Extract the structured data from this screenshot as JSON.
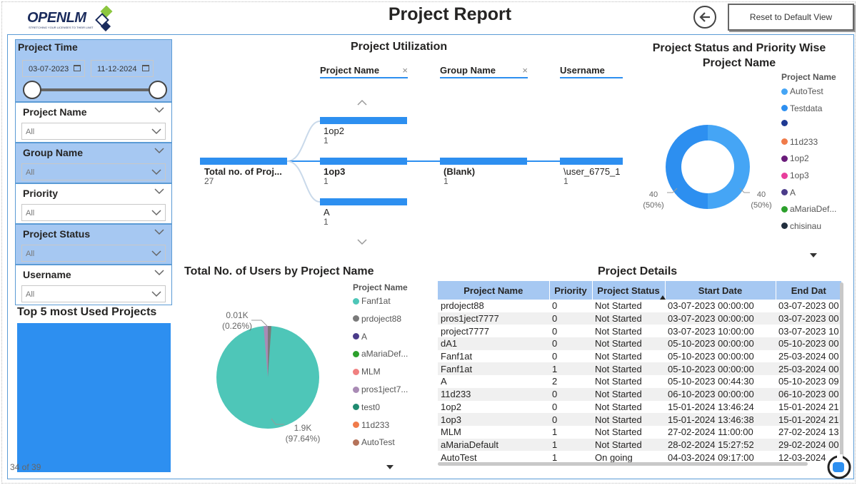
{
  "header": {
    "logo_text": "OPENLM",
    "logo_tagline": "STRETCHING YOUR LICENSES TO THEIR LIMIT",
    "title": "Project Report",
    "reset_label": "Reset to Default View"
  },
  "filters": {
    "project_time": {
      "title": "Project Time",
      "start": "03-07-2023",
      "end": "11-12-2024"
    },
    "project_name": {
      "title": "Project Name",
      "value": "All"
    },
    "group_name": {
      "title": "Group Name",
      "value": "All"
    },
    "priority": {
      "title": "Priority",
      "value": "All"
    },
    "project_status": {
      "title": "Project Status",
      "value": "All"
    },
    "username": {
      "title": "Username",
      "value": "All"
    }
  },
  "top5": {
    "title": "Top 5 most Used Projects",
    "pager": "34 of 39"
  },
  "utilization": {
    "title": "Project Utilization",
    "columns": [
      "Project Name",
      "Group Name",
      "Username"
    ],
    "root": {
      "label": "Total no. of Proj...",
      "value": "27"
    },
    "projects": [
      {
        "label": "1op2",
        "value": "1"
      },
      {
        "label": "1op3",
        "value": "1"
      },
      {
        "label": "A",
        "value": "1"
      }
    ],
    "group": {
      "label": "(Blank)",
      "value": "1"
    },
    "user": {
      "label": "\\user_6775_1",
      "value": "1"
    }
  },
  "status_chart": {
    "title_line1": "Project Status and Priority Wise",
    "title_line2": "Project Name",
    "legend_title": "Project Name",
    "legend": [
      {
        "label": "AutoTest",
        "color": "#45a5f5"
      },
      {
        "label": "Testdata",
        "color": "#2d8ff0"
      },
      {
        "label": "",
        "color": "#1f3a93"
      },
      {
        "label": "11d233",
        "color": "#f07b4a"
      },
      {
        "label": "1op2",
        "color": "#6a1b7a"
      },
      {
        "label": "1op3",
        "color": "#e83e9c"
      },
      {
        "label": "A",
        "color": "#4b3c8a"
      },
      {
        "label": "aMariaDef...",
        "color": "#2ca02c"
      },
      {
        "label": "chisinau",
        "color": "#222f3e"
      }
    ],
    "left_label": {
      "value": "40",
      "pct": "(50%)"
    },
    "right_label": {
      "value": "40",
      "pct": "(50%)"
    }
  },
  "users_chart": {
    "title": "Total No. of Users by Project Name",
    "legend_title": "Project Name",
    "legend": [
      {
        "label": "Fanf1at",
        "color": "#4ec6b8"
      },
      {
        "label": "prdoject88",
        "color": "#7a7a7a"
      },
      {
        "label": "A",
        "color": "#4b3c8a"
      },
      {
        "label": "aMariaDef...",
        "color": "#2ca02c"
      },
      {
        "label": "MLM",
        "color": "#f08080"
      },
      {
        "label": "pros1ject7...",
        "color": "#a98bb5"
      },
      {
        "label": "test0",
        "color": "#1f8a70"
      },
      {
        "label": "11d233",
        "color": "#f07b4a"
      },
      {
        "label": "AutoTest",
        "color": "#b5735a"
      }
    ],
    "small_label": {
      "value": "0.01K",
      "pct": "(0.26%)"
    },
    "big_label": {
      "value": "1.9K",
      "pct": "(97.64%)"
    }
  },
  "details": {
    "title": "Project Details",
    "columns": [
      "Project Name",
      "Priority",
      "Project Status",
      "Start Date",
      "End Dat"
    ],
    "rows": [
      [
        "prdoject88",
        "0",
        "Not Started",
        "03-07-2023 00:00:00",
        "03-07-2023 00"
      ],
      [
        "pros1ject7777",
        "0",
        "Not Started",
        "03-07-2023 00:00:00",
        "03-07-2023 00"
      ],
      [
        "project7777",
        "0",
        "Not Started",
        "03-07-2023 10:00:00",
        "03-07-2023 10"
      ],
      [
        "dA1",
        "0",
        "Not Started",
        "05-10-2023 00:00:00",
        "05-10-2023 00"
      ],
      [
        "Fanf1at",
        "0",
        "Not Started",
        "05-10-2023 00:00:00",
        "25-03-2024 00"
      ],
      [
        "Fanf1at",
        "1",
        "Not Started",
        "05-10-2023 00:00:00",
        "25-03-2024 00"
      ],
      [
        "A",
        "2",
        "Not Started",
        "05-10-2023 00:44:30",
        "05-10-2023 09"
      ],
      [
        "11d233",
        "0",
        "Not Started",
        "06-10-2023 00:00:00",
        "06-10-2023 00"
      ],
      [
        "1op2",
        "0",
        "Not Started",
        "15-01-2024 13:46:24",
        "15-01-2024 21"
      ],
      [
        "1op3",
        "0",
        "Not Started",
        "15-01-2024 13:46:38",
        "15-01-2024 21"
      ],
      [
        "MLM",
        "1",
        "Not Started",
        "27-02-2024 11:00:00",
        "27-02-2024 13"
      ],
      [
        "aMariaDefault",
        "1",
        "Not Started",
        "28-02-2024 15:27:52",
        "29-02-2024 00"
      ],
      [
        "AutoTest",
        "1",
        "On going",
        "04-03-2024 09:17:00",
        "12-03-2024"
      ]
    ]
  }
}
